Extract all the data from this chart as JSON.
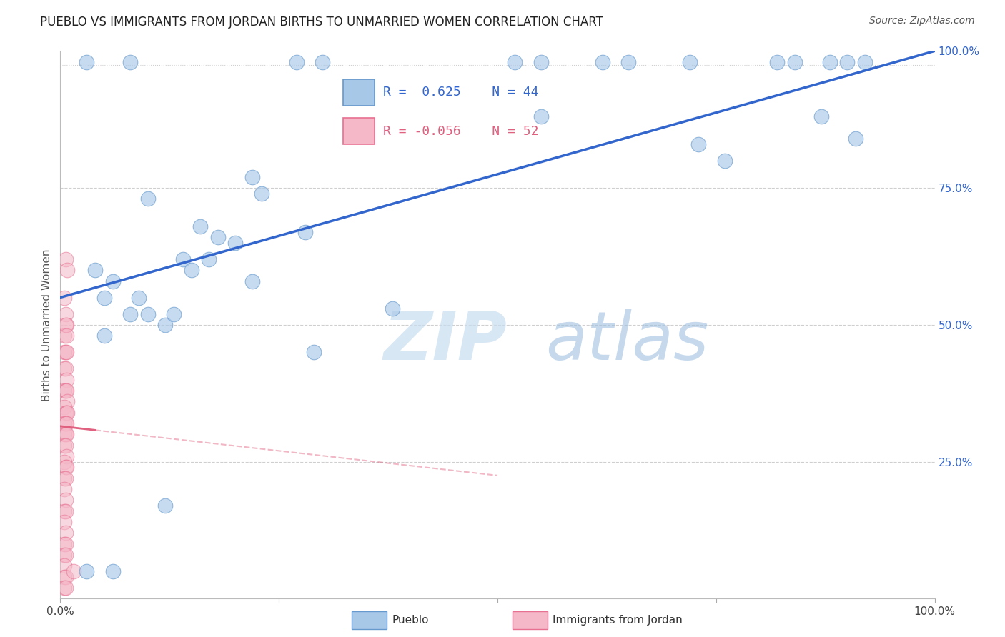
{
  "title": "PUEBLO VS IMMIGRANTS FROM JORDAN BIRTHS TO UNMARRIED WOMEN CORRELATION CHART",
  "source": "Source: ZipAtlas.com",
  "ylabel": "Births to Unmarried Women",
  "xlim": [
    0,
    1
  ],
  "ylim": [
    0,
    1
  ],
  "blue_R": 0.625,
  "blue_N": 44,
  "pink_R": -0.056,
  "pink_N": 52,
  "blue_color": "#a8c8e8",
  "blue_edge_color": "#6699cc",
  "pink_color": "#f4b8c8",
  "pink_edge_color": "#e87090",
  "blue_line_color": "#3366cc",
  "pink_line_color": "#e06080",
  "blue_scatter": [
    [
      0.03,
      0.98
    ],
    [
      0.08,
      0.98
    ],
    [
      0.27,
      0.98
    ],
    [
      0.3,
      0.98
    ],
    [
      0.52,
      0.98
    ],
    [
      0.55,
      0.98
    ],
    [
      0.62,
      0.98
    ],
    [
      0.65,
      0.98
    ],
    [
      0.72,
      0.98
    ],
    [
      0.82,
      0.98
    ],
    [
      0.84,
      0.98
    ],
    [
      0.88,
      0.98
    ],
    [
      0.9,
      0.98
    ],
    [
      0.92,
      0.98
    ],
    [
      0.55,
      0.88
    ],
    [
      0.73,
      0.83
    ],
    [
      0.76,
      0.8
    ],
    [
      0.87,
      0.88
    ],
    [
      0.91,
      0.84
    ],
    [
      0.22,
      0.77
    ],
    [
      0.23,
      0.74
    ],
    [
      0.1,
      0.73
    ],
    [
      0.16,
      0.68
    ],
    [
      0.18,
      0.66
    ],
    [
      0.14,
      0.62
    ],
    [
      0.15,
      0.6
    ],
    [
      0.2,
      0.65
    ],
    [
      0.28,
      0.67
    ],
    [
      0.04,
      0.6
    ],
    [
      0.17,
      0.62
    ],
    [
      0.22,
      0.58
    ],
    [
      0.05,
      0.55
    ],
    [
      0.06,
      0.58
    ],
    [
      0.08,
      0.52
    ],
    [
      0.09,
      0.55
    ],
    [
      0.1,
      0.52
    ],
    [
      0.12,
      0.5
    ],
    [
      0.13,
      0.52
    ],
    [
      0.29,
      0.45
    ],
    [
      0.38,
      0.53
    ],
    [
      0.12,
      0.17
    ],
    [
      0.03,
      0.05
    ],
    [
      0.06,
      0.05
    ],
    [
      0.05,
      0.48
    ]
  ],
  "pink_scatter": [
    [
      0.006,
      0.62
    ],
    [
      0.008,
      0.6
    ],
    [
      0.005,
      0.55
    ],
    [
      0.006,
      0.52
    ],
    [
      0.007,
      0.5
    ],
    [
      0.005,
      0.48
    ],
    [
      0.006,
      0.5
    ],
    [
      0.007,
      0.48
    ],
    [
      0.005,
      0.45
    ],
    [
      0.006,
      0.45
    ],
    [
      0.007,
      0.45
    ],
    [
      0.005,
      0.42
    ],
    [
      0.006,
      0.42
    ],
    [
      0.007,
      0.4
    ],
    [
      0.005,
      0.38
    ],
    [
      0.006,
      0.38
    ],
    [
      0.007,
      0.38
    ],
    [
      0.008,
      0.36
    ],
    [
      0.005,
      0.35
    ],
    [
      0.006,
      0.34
    ],
    [
      0.007,
      0.34
    ],
    [
      0.008,
      0.34
    ],
    [
      0.005,
      0.32
    ],
    [
      0.006,
      0.32
    ],
    [
      0.007,
      0.32
    ],
    [
      0.005,
      0.3
    ],
    [
      0.006,
      0.3
    ],
    [
      0.007,
      0.3
    ],
    [
      0.005,
      0.28
    ],
    [
      0.006,
      0.28
    ],
    [
      0.007,
      0.26
    ],
    [
      0.005,
      0.25
    ],
    [
      0.006,
      0.24
    ],
    [
      0.007,
      0.24
    ],
    [
      0.005,
      0.22
    ],
    [
      0.006,
      0.22
    ],
    [
      0.005,
      0.2
    ],
    [
      0.006,
      0.18
    ],
    [
      0.005,
      0.16
    ],
    [
      0.006,
      0.16
    ],
    [
      0.005,
      0.14
    ],
    [
      0.006,
      0.12
    ],
    [
      0.005,
      0.1
    ],
    [
      0.006,
      0.1
    ],
    [
      0.005,
      0.08
    ],
    [
      0.006,
      0.08
    ],
    [
      0.005,
      0.06
    ],
    [
      0.005,
      0.04
    ],
    [
      0.006,
      0.04
    ],
    [
      0.005,
      0.02
    ],
    [
      0.006,
      0.02
    ],
    [
      0.015,
      0.05
    ]
  ],
  "watermark_zip": "ZIP",
  "watermark_atlas": "atlas",
  "background_color": "#ffffff",
  "grid_color": "#bbbbbb"
}
